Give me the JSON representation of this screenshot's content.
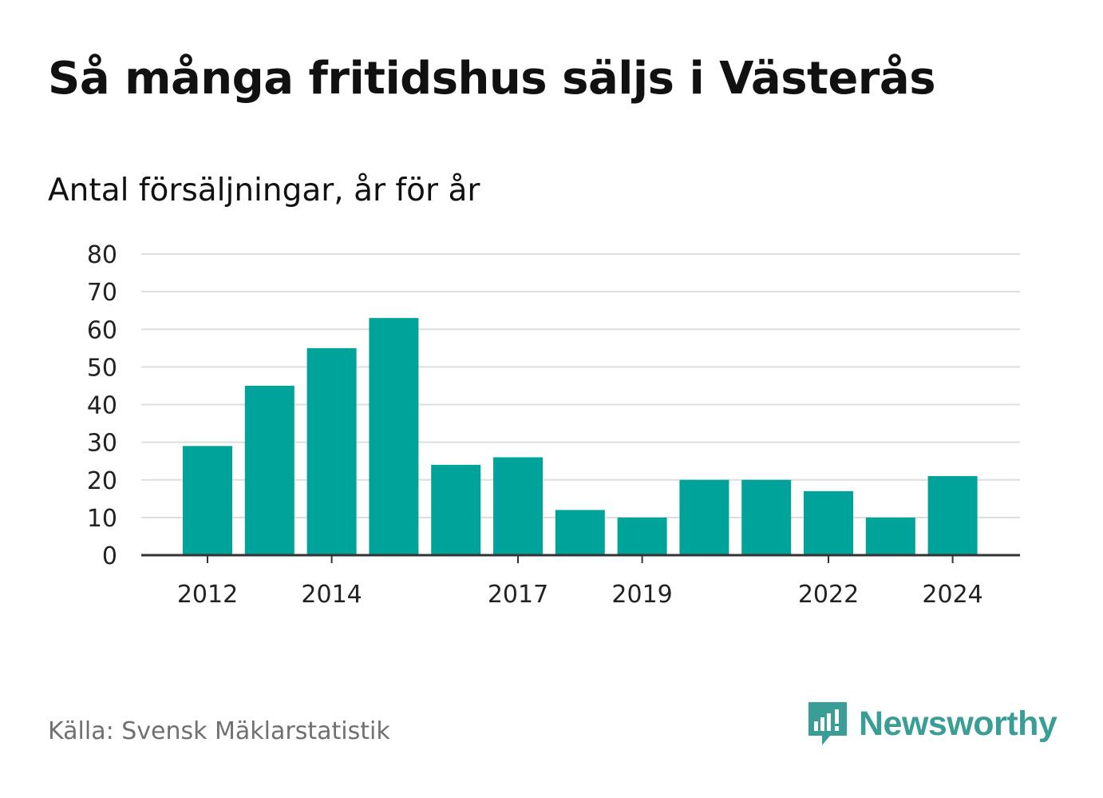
{
  "title": "Så många fritidshus säljs i Västerås",
  "subtitle": "Antal försäljningar, år för år",
  "source": "Källa: Svensk Mäklarstatistik",
  "brand": {
    "name": "Newsworthy",
    "icon": "newsworthy-logo-icon",
    "color": "#3a9d96"
  },
  "colors": {
    "bar": "#00a39a",
    "grid": "#dddddd",
    "axis": "#333333"
  },
  "chart_data": {
    "type": "bar",
    "title": "Så många fritidshus säljs i Västerås",
    "subtitle": "Antal försäljningar, år för år",
    "categories": [
      "2012",
      "2013",
      "2014",
      "2015",
      "2016",
      "2017",
      "2018",
      "2019",
      "2020",
      "2021",
      "2022",
      "2023",
      "2024"
    ],
    "values": [
      29,
      45,
      55,
      63,
      24,
      26,
      12,
      10,
      20,
      20,
      17,
      10,
      21
    ],
    "x_tick_labels": [
      "2012",
      "2014",
      "2017",
      "2019",
      "2022",
      "2024"
    ],
    "y_ticks": [
      0,
      10,
      20,
      30,
      40,
      50,
      60,
      70,
      80
    ],
    "ylim": [
      0,
      80
    ],
    "grid": true,
    "legend": "none",
    "xlabel": "",
    "ylabel": ""
  }
}
